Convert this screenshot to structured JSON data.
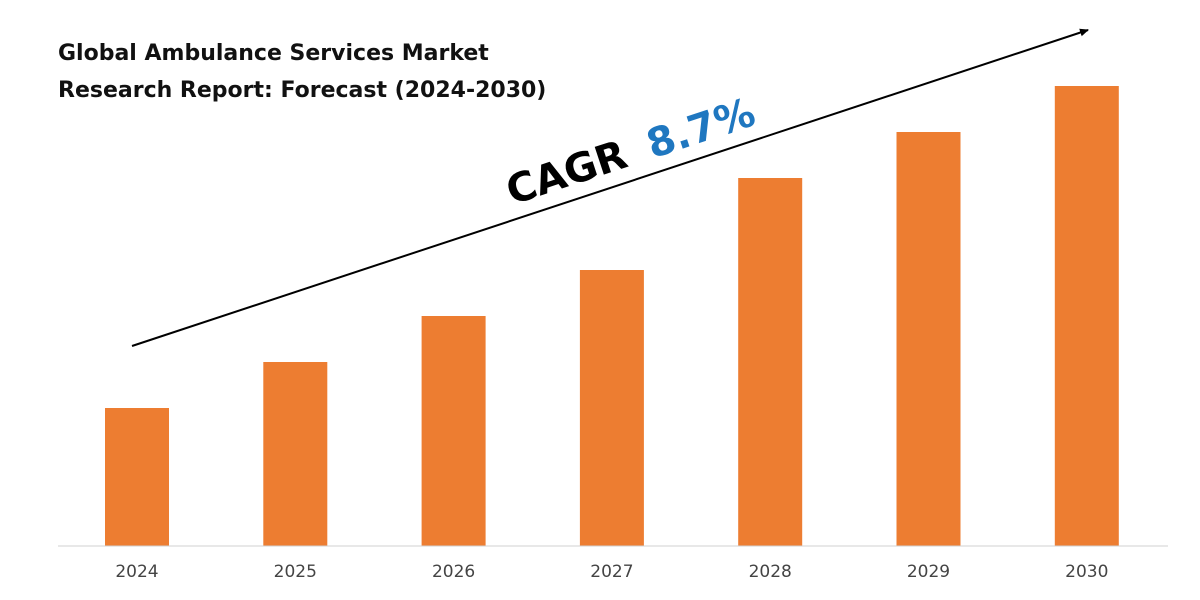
{
  "chart_data": {
    "type": "bar",
    "title_lines": [
      "Global Ambulance Services Market",
      "Research Report: Forecast (2024-2030)"
    ],
    "categories": [
      "2024",
      "2025",
      "2026",
      "2027",
      "2028",
      "2029",
      "2030"
    ],
    "values": [
      30,
      40,
      50,
      60,
      80,
      90,
      100
    ],
    "ylim": [
      0,
      100
    ],
    "xlabel": "",
    "ylabel": "",
    "grid": false,
    "bar_color": "#ED7D31",
    "annotation": {
      "prefix": "CAGR",
      "value": "8.7%",
      "prefix_color": "#000000",
      "value_color": "#1F77C0"
    }
  }
}
